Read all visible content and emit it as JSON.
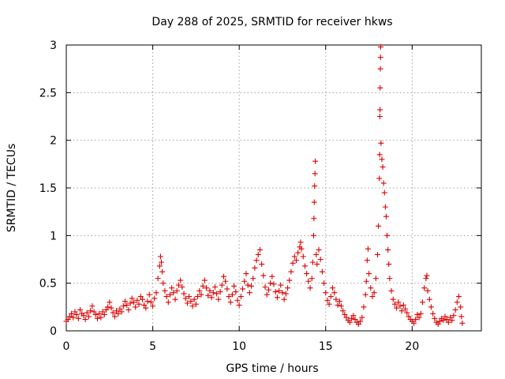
{
  "chart_data": {
    "type": "scatter",
    "title": "Day 288 of 2025, SRMTID for receiver hkws",
    "xlabel": "GPS time / hours",
    "ylabel": "SRMTID / TECUs",
    "xlim": [
      0,
      24
    ],
    "ylim": [
      0,
      3
    ],
    "xticks": [
      0,
      5,
      10,
      15,
      20
    ],
    "yticks": [
      0,
      0.5,
      1,
      1.5,
      2,
      2.5,
      3
    ],
    "xtick_labels": [
      "0",
      "5",
      "10",
      "15",
      "20"
    ],
    "ytick_labels": [
      "0",
      "0.5",
      "1",
      "1.5",
      "2",
      "2.5",
      "3"
    ],
    "grid": true,
    "marker": "plus",
    "marker_color": "#dd0000",
    "series": [
      {
        "name": "SRMTID",
        "points": [
          [
            0.0,
            0.1
          ],
          [
            0.1,
            0.12
          ],
          [
            0.2,
            0.15
          ],
          [
            0.3,
            0.18
          ],
          [
            0.4,
            0.14
          ],
          [
            0.5,
            0.2
          ],
          [
            0.6,
            0.17
          ],
          [
            0.7,
            0.13
          ],
          [
            0.8,
            0.22
          ],
          [
            0.9,
            0.18
          ],
          [
            1.0,
            0.16
          ],
          [
            1.1,
            0.12
          ],
          [
            1.2,
            0.19
          ],
          [
            1.3,
            0.15
          ],
          [
            1.4,
            0.21
          ],
          [
            1.5,
            0.26
          ],
          [
            1.6,
            0.2
          ],
          [
            1.7,
            0.17
          ],
          [
            1.8,
            0.13
          ],
          [
            1.9,
            0.18
          ],
          [
            2.0,
            0.14
          ],
          [
            2.1,
            0.2
          ],
          [
            2.2,
            0.17
          ],
          [
            2.3,
            0.22
          ],
          [
            2.4,
            0.25
          ],
          [
            2.5,
            0.3
          ],
          [
            2.6,
            0.24
          ],
          [
            2.7,
            0.19
          ],
          [
            2.8,
            0.15
          ],
          [
            2.9,
            0.21
          ],
          [
            3.0,
            0.18
          ],
          [
            3.1,
            0.23
          ],
          [
            3.2,
            0.2
          ],
          [
            3.3,
            0.26
          ],
          [
            3.4,
            0.31
          ],
          [
            3.5,
            0.27
          ],
          [
            3.6,
            0.22
          ],
          [
            3.7,
            0.29
          ],
          [
            3.8,
            0.34
          ],
          [
            3.9,
            0.3
          ],
          [
            4.0,
            0.25
          ],
          [
            4.1,
            0.32
          ],
          [
            4.2,
            0.28
          ],
          [
            4.3,
            0.36
          ],
          [
            4.4,
            0.33
          ],
          [
            4.5,
            0.27
          ],
          [
            4.6,
            0.24
          ],
          [
            4.7,
            0.31
          ],
          [
            4.8,
            0.38
          ],
          [
            4.9,
            0.3
          ],
          [
            5.0,
            0.26
          ],
          [
            5.1,
            0.34
          ],
          [
            5.2,
            0.4
          ],
          [
            5.3,
            0.55
          ],
          [
            5.4,
            0.68
          ],
          [
            5.45,
            0.78
          ],
          [
            5.5,
            0.72
          ],
          [
            5.55,
            0.62
          ],
          [
            5.6,
            0.5
          ],
          [
            5.7,
            0.42
          ],
          [
            5.8,
            0.36
          ],
          [
            5.9,
            0.3
          ],
          [
            6.0,
            0.38
          ],
          [
            6.1,
            0.45
          ],
          [
            6.2,
            0.4
          ],
          [
            6.3,
            0.33
          ],
          [
            6.4,
            0.42
          ],
          [
            6.5,
            0.48
          ],
          [
            6.6,
            0.53
          ],
          [
            6.7,
            0.46
          ],
          [
            6.8,
            0.39
          ],
          [
            6.9,
            0.34
          ],
          [
            7.0,
            0.29
          ],
          [
            7.1,
            0.36
          ],
          [
            7.2,
            0.31
          ],
          [
            7.3,
            0.26
          ],
          [
            7.4,
            0.33
          ],
          [
            7.5,
            0.28
          ],
          [
            7.6,
            0.36
          ],
          [
            7.7,
            0.42
          ],
          [
            7.8,
            0.38
          ],
          [
            7.9,
            0.47
          ],
          [
            8.0,
            0.53
          ],
          [
            8.1,
            0.45
          ],
          [
            8.2,
            0.37
          ],
          [
            8.3,
            0.42
          ],
          [
            8.4,
            0.35
          ],
          [
            8.5,
            0.4
          ],
          [
            8.6,
            0.46
          ],
          [
            8.7,
            0.39
          ],
          [
            8.8,
            0.33
          ],
          [
            8.9,
            0.41
          ],
          [
            9.0,
            0.48
          ],
          [
            9.1,
            0.57
          ],
          [
            9.2,
            0.52
          ],
          [
            9.3,
            0.44
          ],
          [
            9.4,
            0.36
          ],
          [
            9.5,
            0.3
          ],
          [
            9.6,
            0.38
          ],
          [
            9.7,
            0.47
          ],
          [
            9.8,
            0.41
          ],
          [
            9.9,
            0.32
          ],
          [
            10.0,
            0.27
          ],
          [
            10.1,
            0.36
          ],
          [
            10.2,
            0.44
          ],
          [
            10.3,
            0.52
          ],
          [
            10.4,
            0.6
          ],
          [
            10.5,
            0.48
          ],
          [
            10.6,
            0.4
          ],
          [
            10.7,
            0.47
          ],
          [
            10.8,
            0.55
          ],
          [
            10.9,
            0.66
          ],
          [
            11.0,
            0.74
          ],
          [
            11.1,
            0.8
          ],
          [
            11.2,
            0.85
          ],
          [
            11.3,
            0.7
          ],
          [
            11.4,
            0.58
          ],
          [
            11.5,
            0.46
          ],
          [
            11.6,
            0.38
          ],
          [
            11.7,
            0.43
          ],
          [
            11.8,
            0.5
          ],
          [
            11.9,
            0.57
          ],
          [
            12.0,
            0.49
          ],
          [
            12.1,
            0.41
          ],
          [
            12.2,
            0.35
          ],
          [
            12.3,
            0.42
          ],
          [
            12.4,
            0.48
          ],
          [
            12.5,
            0.4
          ],
          [
            12.6,
            0.33
          ],
          [
            12.7,
            0.39
          ],
          [
            12.8,
            0.45
          ],
          [
            12.9,
            0.53
          ],
          [
            13.0,
            0.62
          ],
          [
            13.1,
            0.71
          ],
          [
            13.2,
            0.78
          ],
          [
            13.3,
            0.74
          ],
          [
            13.4,
            0.82
          ],
          [
            13.5,
            0.88
          ],
          [
            13.55,
            0.93
          ],
          [
            13.6,
            0.86
          ],
          [
            13.7,
            0.78
          ],
          [
            13.8,
            0.68
          ],
          [
            13.9,
            0.6
          ],
          [
            14.0,
            0.52
          ],
          [
            14.1,
            0.45
          ],
          [
            14.2,
            0.55
          ],
          [
            14.25,
            0.72
          ],
          [
            14.3,
            1.0
          ],
          [
            14.32,
            1.18
          ],
          [
            14.34,
            1.35
          ],
          [
            14.36,
            1.52
          ],
          [
            14.38,
            1.65
          ],
          [
            14.4,
            1.78
          ],
          [
            14.45,
            0.8
          ],
          [
            14.5,
            0.7
          ],
          [
            14.6,
            0.85
          ],
          [
            14.7,
            0.75
          ],
          [
            14.8,
            0.62
          ],
          [
            14.9,
            0.5
          ],
          [
            15.0,
            0.4
          ],
          [
            15.1,
            0.32
          ],
          [
            15.2,
            0.28
          ],
          [
            15.3,
            0.36
          ],
          [
            15.4,
            0.45
          ],
          [
            15.5,
            0.4
          ],
          [
            15.6,
            0.33
          ],
          [
            15.7,
            0.27
          ],
          [
            15.8,
            0.31
          ],
          [
            15.9,
            0.26
          ],
          [
            16.0,
            0.21
          ],
          [
            16.1,
            0.17
          ],
          [
            16.2,
            0.14
          ],
          [
            16.3,
            0.11
          ],
          [
            16.4,
            0.09
          ],
          [
            16.5,
            0.13
          ],
          [
            16.6,
            0.16
          ],
          [
            16.7,
            0.12
          ],
          [
            16.8,
            0.09
          ],
          [
            16.9,
            0.07
          ],
          [
            17.0,
            0.1
          ],
          [
            17.1,
            0.14
          ],
          [
            17.2,
            0.25
          ],
          [
            17.3,
            0.38
          ],
          [
            17.35,
            0.52
          ],
          [
            17.4,
            0.74
          ],
          [
            17.45,
            0.86
          ],
          [
            17.5,
            0.6
          ],
          [
            17.6,
            0.45
          ],
          [
            17.7,
            0.36
          ],
          [
            17.8,
            0.4
          ],
          [
            17.9,
            0.55
          ],
          [
            18.0,
            0.8
          ],
          [
            18.05,
            1.1
          ],
          [
            18.1,
            1.6
          ],
          [
            18.12,
            1.85
          ],
          [
            18.13,
            2.25
          ],
          [
            18.14,
            2.32
          ],
          [
            18.15,
            2.55
          ],
          [
            18.16,
            2.75
          ],
          [
            18.17,
            2.87
          ],
          [
            18.18,
            2.98
          ],
          [
            18.2,
            1.97
          ],
          [
            18.25,
            1.8
          ],
          [
            18.3,
            1.72
          ],
          [
            18.35,
            1.55
          ],
          [
            18.4,
            1.45
          ],
          [
            18.45,
            1.3
          ],
          [
            18.5,
            1.2
          ],
          [
            18.55,
            1.0
          ],
          [
            18.6,
            0.85
          ],
          [
            18.65,
            0.7
          ],
          [
            18.7,
            0.55
          ],
          [
            18.8,
            0.42
          ],
          [
            18.9,
            0.33
          ],
          [
            19.0,
            0.28
          ],
          [
            19.1,
            0.24
          ],
          [
            19.2,
            0.3
          ],
          [
            19.3,
            0.26
          ],
          [
            19.4,
            0.21
          ],
          [
            19.5,
            0.27
          ],
          [
            19.6,
            0.23
          ],
          [
            19.7,
            0.19
          ],
          [
            19.8,
            0.15
          ],
          [
            19.9,
            0.12
          ],
          [
            20.0,
            0.1
          ],
          [
            20.1,
            0.08
          ],
          [
            20.2,
            0.12
          ],
          [
            20.3,
            0.17
          ],
          [
            20.4,
            0.14
          ],
          [
            20.5,
            0.18
          ],
          [
            20.6,
            0.3
          ],
          [
            20.7,
            0.45
          ],
          [
            20.8,
            0.55
          ],
          [
            20.85,
            0.58
          ],
          [
            20.9,
            0.42
          ],
          [
            21.0,
            0.33
          ],
          [
            21.1,
            0.25
          ],
          [
            21.2,
            0.18
          ],
          [
            21.3,
            0.13
          ],
          [
            21.4,
            0.09
          ],
          [
            21.5,
            0.07
          ],
          [
            21.6,
            0.1
          ],
          [
            21.7,
            0.13
          ],
          [
            21.8,
            0.11
          ],
          [
            21.9,
            0.15
          ],
          [
            22.0,
            0.12
          ],
          [
            22.1,
            0.09
          ],
          [
            22.2,
            0.14
          ],
          [
            22.3,
            0.11
          ],
          [
            22.4,
            0.16
          ],
          [
            22.5,
            0.22
          ],
          [
            22.6,
            0.3
          ],
          [
            22.7,
            0.36
          ],
          [
            22.8,
            0.25
          ],
          [
            22.85,
            0.15
          ],
          [
            22.9,
            0.08
          ]
        ]
      }
    ]
  }
}
